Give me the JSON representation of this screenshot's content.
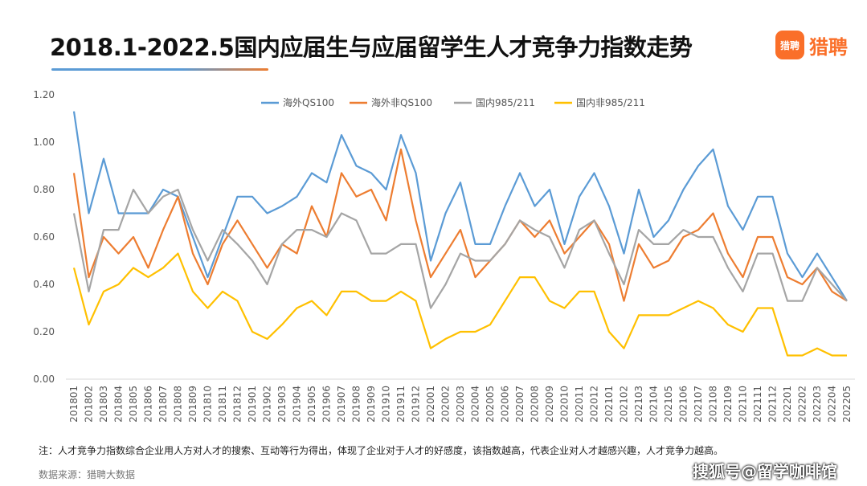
{
  "header": {
    "title": "2018.1-2022.5国内应届生与应届留学生人才竞争力指数走势",
    "logo_badge": "猎聘",
    "logo_text": "猎聘"
  },
  "footer": {
    "note": "注：人才竞争力指数综合企业用人方对人才的搜索、互动等行为得出，体现了企业对于人才的好感度，该指数越高，代表企业对人才越感兴趣，人才竞争力越高。",
    "source": "数据来源：猎聘大数据",
    "watermark": "搜狐号@留学咖啡馆"
  },
  "chart_data": {
    "type": "line",
    "title": "2018.1-2022.5国内应届生与应届留学生人才竞争力指数走势",
    "xlabel": "",
    "ylabel": "",
    "ylim": [
      0,
      1.2
    ],
    "yticks": [
      "0.00",
      "0.20",
      "0.40",
      "0.60",
      "0.80",
      "1.00",
      "1.20"
    ],
    "grid": false,
    "legend_position": "top",
    "categories": [
      "201801",
      "201802",
      "201803",
      "201804",
      "201805",
      "201806",
      "201807",
      "201808",
      "201809",
      "201810",
      "201811",
      "201812",
      "201901",
      "201902",
      "201903",
      "201904",
      "201905",
      "201906",
      "201907",
      "201908",
      "201909",
      "201910",
      "201911",
      "201912",
      "202001",
      "202002",
      "202003",
      "202004",
      "202005",
      "202006",
      "202007",
      "202008",
      "202009",
      "202010",
      "202011",
      "202012",
      "202101",
      "202102",
      "202103",
      "202104",
      "202105",
      "202106",
      "202107",
      "202108",
      "202109",
      "202110",
      "202111",
      "202112",
      "202201",
      "202202",
      "202203",
      "202204",
      "202205"
    ],
    "series": [
      {
        "name": "海外QS100",
        "color": "#5b9bd5",
        "values": [
          1.13,
          0.7,
          0.93,
          0.7,
          0.7,
          0.7,
          0.8,
          0.77,
          0.6,
          0.43,
          0.6,
          0.77,
          0.77,
          0.7,
          0.73,
          0.77,
          0.87,
          0.83,
          1.03,
          0.9,
          0.87,
          0.8,
          1.03,
          0.87,
          0.5,
          0.7,
          0.83,
          0.57,
          0.57,
          0.73,
          0.87,
          0.73,
          0.8,
          0.57,
          0.77,
          0.87,
          0.73,
          0.53,
          0.8,
          0.6,
          0.67,
          0.8,
          0.9,
          0.97,
          0.73,
          0.63,
          0.77,
          0.77,
          0.53,
          0.43,
          0.53,
          0.43,
          0.33
        ]
      },
      {
        "name": "海外非QS100",
        "color": "#ed7d31",
        "values": [
          0.87,
          0.43,
          0.6,
          0.53,
          0.6,
          0.47,
          0.63,
          0.77,
          0.53,
          0.4,
          0.57,
          0.67,
          0.57,
          0.47,
          0.57,
          0.53,
          0.73,
          0.6,
          0.87,
          0.77,
          0.8,
          0.67,
          0.97,
          0.67,
          0.43,
          0.53,
          0.63,
          0.43,
          0.5,
          0.57,
          0.67,
          0.6,
          0.67,
          0.53,
          0.6,
          0.67,
          0.57,
          0.33,
          0.57,
          0.47,
          0.5,
          0.6,
          0.63,
          0.7,
          0.53,
          0.43,
          0.6,
          0.6,
          0.43,
          0.4,
          0.47,
          0.37,
          0.33
        ]
      },
      {
        "name": "国内985/211",
        "color": "#a5a5a5",
        "values": [
          0.7,
          0.37,
          0.63,
          0.63,
          0.8,
          0.7,
          0.77,
          0.8,
          0.63,
          0.5,
          0.63,
          0.57,
          0.5,
          0.4,
          0.57,
          0.63,
          0.63,
          0.6,
          0.7,
          0.67,
          0.53,
          0.53,
          0.57,
          0.57,
          0.3,
          0.4,
          0.53,
          0.5,
          0.5,
          0.57,
          0.67,
          0.63,
          0.6,
          0.47,
          0.63,
          0.67,
          0.53,
          0.4,
          0.63,
          0.57,
          0.57,
          0.63,
          0.6,
          0.6,
          0.47,
          0.37,
          0.53,
          0.53,
          0.33,
          0.33,
          0.47,
          0.4,
          0.33
        ]
      },
      {
        "name": "国内非985/211",
        "color": "#ffc000",
        "values": [
          0.47,
          0.23,
          0.37,
          0.4,
          0.47,
          0.43,
          0.47,
          0.53,
          0.37,
          0.3,
          0.37,
          0.33,
          0.2,
          0.17,
          0.23,
          0.3,
          0.33,
          0.27,
          0.37,
          0.37,
          0.33,
          0.33,
          0.37,
          0.33,
          0.13,
          0.17,
          0.2,
          0.2,
          0.23,
          0.33,
          0.43,
          0.43,
          0.33,
          0.3,
          0.37,
          0.37,
          0.2,
          0.13,
          0.27,
          0.27,
          0.27,
          0.3,
          0.33,
          0.3,
          0.23,
          0.2,
          0.3,
          0.3,
          0.1,
          0.1,
          0.13,
          0.1,
          0.1
        ]
      }
    ]
  }
}
